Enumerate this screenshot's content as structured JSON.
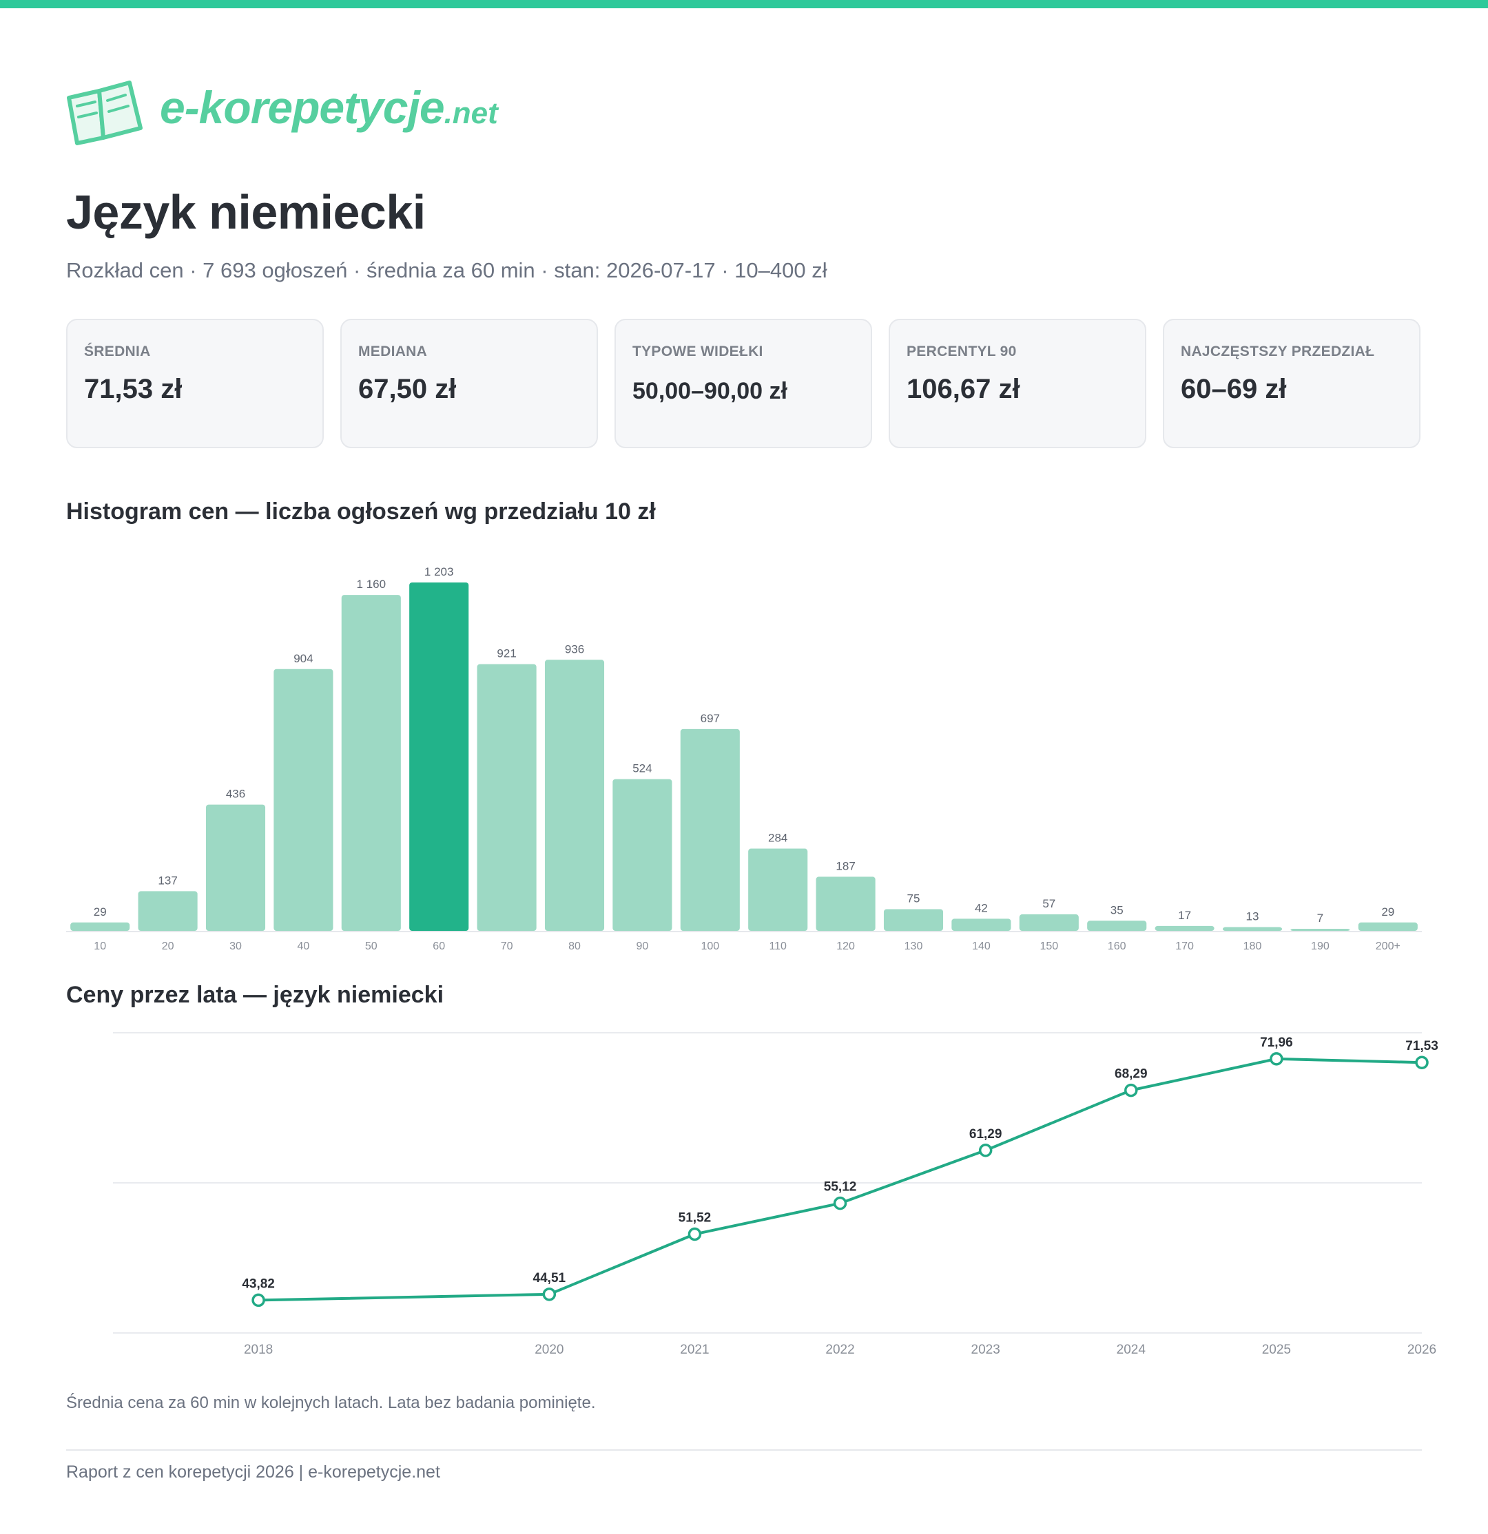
{
  "brand": {
    "logo_main": "e-korepetycje",
    "logo_tld": ".net"
  },
  "page": {
    "title": "Język niemiecki",
    "subtitle": "Rozkład cen · 7 693 ogłoszeń · średnia za 60 min · stan: 2026-07-17 · 10–400 zł"
  },
  "stats": [
    {
      "label": "ŚREDNIA",
      "value": "71,53 zł"
    },
    {
      "label": "MEDIANA",
      "value": "67,50 zł"
    },
    {
      "label": "TYPOWE WIDEŁKI",
      "value": "50,00–90,00 zł"
    },
    {
      "label": "PERCENTYL 90",
      "value": "106,67 zł"
    },
    {
      "label": "NAJCZĘSTSZY PRZEDZIAŁ",
      "value": "60–69 zł"
    }
  ],
  "colors": {
    "accent": "#2ec99a",
    "bar": "#9dd9c4",
    "bar_highlight": "#22b38a",
    "line": "#22aa86"
  },
  "chart_data": [
    {
      "type": "bar",
      "title": "Histogram cen — liczba ogłoszeń wg przedziału 10 zł",
      "categories": [
        "10",
        "20",
        "30",
        "40",
        "50",
        "60",
        "70",
        "80",
        "90",
        "100",
        "110",
        "120",
        "130",
        "140",
        "150",
        "160",
        "170",
        "180",
        "190",
        "200+"
      ],
      "values": [
        29,
        137,
        436,
        904,
        1160,
        1203,
        921,
        936,
        524,
        697,
        284,
        187,
        75,
        42,
        57,
        35,
        17,
        13,
        7,
        29
      ],
      "value_labels": [
        "29",
        "137",
        "436",
        "904",
        "1 160",
        "1 203",
        "921",
        "936",
        "524",
        "697",
        "284",
        "187",
        "75",
        "42",
        "57",
        "35",
        "17",
        "13",
        "7",
        "29"
      ],
      "highlight_category": "60",
      "xlabel": "",
      "ylabel": "",
      "grid": false
    },
    {
      "type": "line",
      "title": "Ceny przez lata — język niemiecki",
      "x": [
        2018,
        2020,
        2021,
        2022,
        2023,
        2024,
        2025,
        2026
      ],
      "values": [
        43.82,
        44.51,
        51.52,
        55.12,
        61.29,
        68.29,
        71.96,
        71.53
      ],
      "value_labels": [
        "43,82",
        "44,51",
        "51,52",
        "55,12",
        "61,29",
        "68,29",
        "71,96",
        "71,53"
      ],
      "ylim": [
        40,
        75
      ],
      "grid": true
    }
  ],
  "caption": "Średnia cena za 60 min w kolejnych latach. Lata bez badania pominięte.",
  "footer": "Raport z cen korepetycji 2026 | e-korepetycje.net"
}
